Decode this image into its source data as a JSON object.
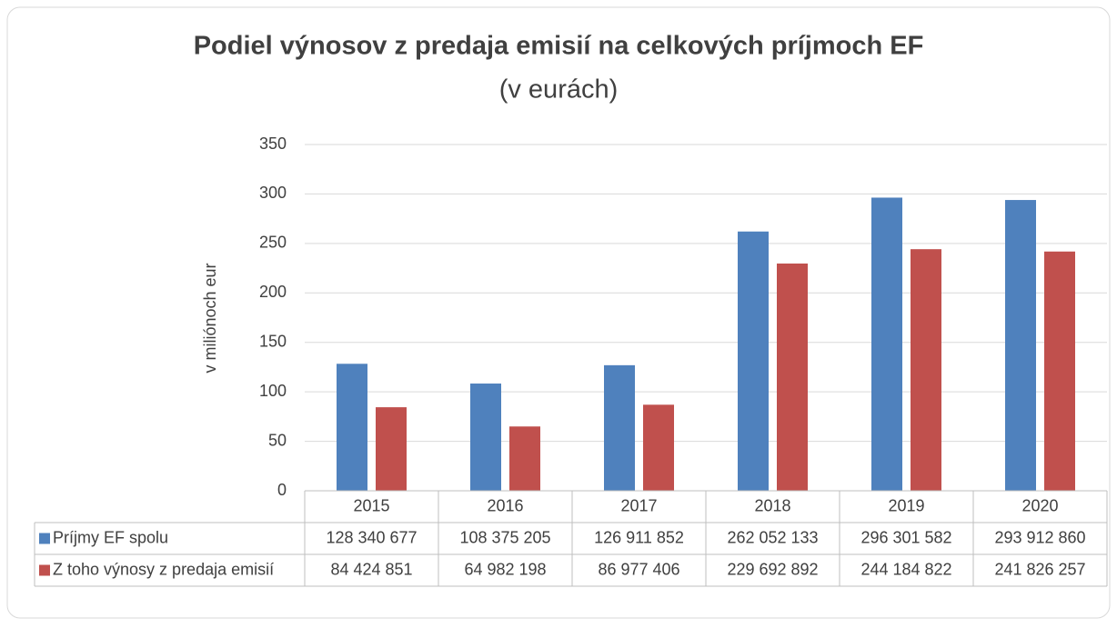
{
  "chart_data": {
    "type": "bar",
    "title": "Podiel výnosov z predaja emisií na celkových príjmoch EF",
    "subtitle": "(v eurách)",
    "y_label": "v miliónoch eur",
    "categories": [
      "2015",
      "2016",
      "2017",
      "2018",
      "2019",
      "2020"
    ],
    "series": [
      {
        "name": "Príjmy EF spolu",
        "color": "#4f81bd",
        "values": [
          128.340677,
          108.375205,
          126.911852,
          262.052133,
          296.301582,
          293.91286
        ],
        "value_labels": [
          "128 340 677",
          "108 375 205",
          "126 911 852",
          "262 052 133",
          "296 301 582",
          "293 912 860"
        ]
      },
      {
        "name": "Z toho výnosy z predaja emisií",
        "color": "#c0504d",
        "values": [
          84.424851,
          64.982198,
          86.977406,
          229.692892,
          244.184822,
          241.826257
        ],
        "value_labels": [
          "84 424 851",
          "64 982 198",
          "86 977 406",
          "229 692 892",
          "244 184 822",
          "241 826 257"
        ]
      }
    ],
    "ylim": [
      0,
      350
    ],
    "yticks": [
      0,
      50,
      100,
      150,
      200,
      250,
      300,
      350
    ],
    "grid": true
  }
}
